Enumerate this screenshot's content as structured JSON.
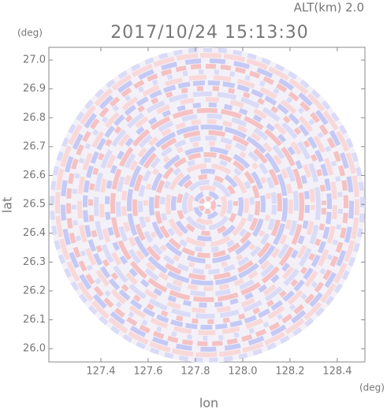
{
  "chart_data": {
    "type": "radar-image",
    "title": "2017/10/24 15:13:30",
    "subtitle": "ALT(km) 2.0",
    "x_label": "lon",
    "y_label": "lat",
    "x_unit": "(deg)",
    "y_unit": "(deg)",
    "xlim": [
      127.18,
      128.517
    ],
    "ylim": [
      25.954,
      27.044
    ],
    "xticks": [
      127.4,
      127.6,
      127.8,
      {
        "value": 128.0,
        "label": "128.0"
      },
      128.2,
      128.4
    ],
    "yticks": [
      {
        "value": 26.0,
        "label": "26.0"
      },
      26.1,
      26.2,
      26.3,
      26.4,
      26.5,
      26.6,
      26.7,
      26.8,
      26.9,
      {
        "value": 27.0,
        "label": "27.0"
      }
    ]
  }
}
